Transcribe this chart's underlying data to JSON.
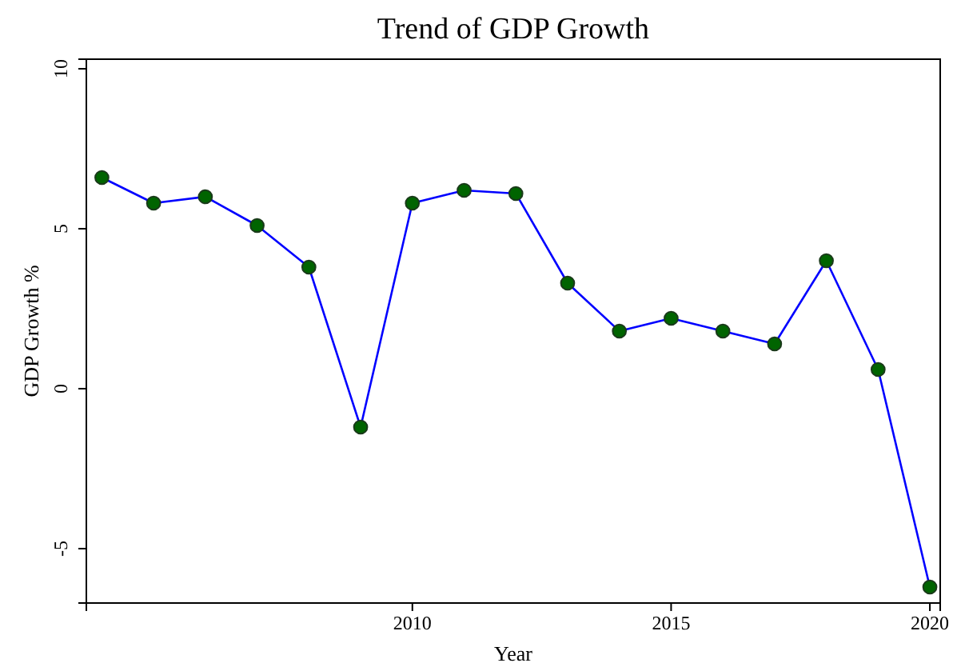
{
  "chart_data": {
    "type": "line",
    "title": "Trend of GDP Growth",
    "xlabel": "Year",
    "ylabel": "GDP Growth %",
    "x": [
      2004,
      2005,
      2006,
      2007,
      2008,
      2009,
      2010,
      2011,
      2012,
      2013,
      2014,
      2015,
      2016,
      2017,
      2018,
      2019,
      2020
    ],
    "series": [
      {
        "color": "#0000ff",
        "values": [
          6.6,
          5.8,
          6.0,
          5.1,
          3.8,
          -1.2,
          5.8,
          6.2,
          6.1,
          3.3,
          1.8,
          2.2,
          1.8,
          1.4,
          4.0,
          0.6,
          -6.2
        ]
      }
    ],
    "marker": "circle",
    "line_style": "solid",
    "grid": false,
    "xlim": [
      2003.7,
      2020.2
    ],
    "xticks": [
      2010,
      2015,
      2020
    ],
    "ylim": [
      -6.7,
      10.3
    ],
    "yticks": [
      -5,
      0,
      5,
      10
    ]
  }
}
